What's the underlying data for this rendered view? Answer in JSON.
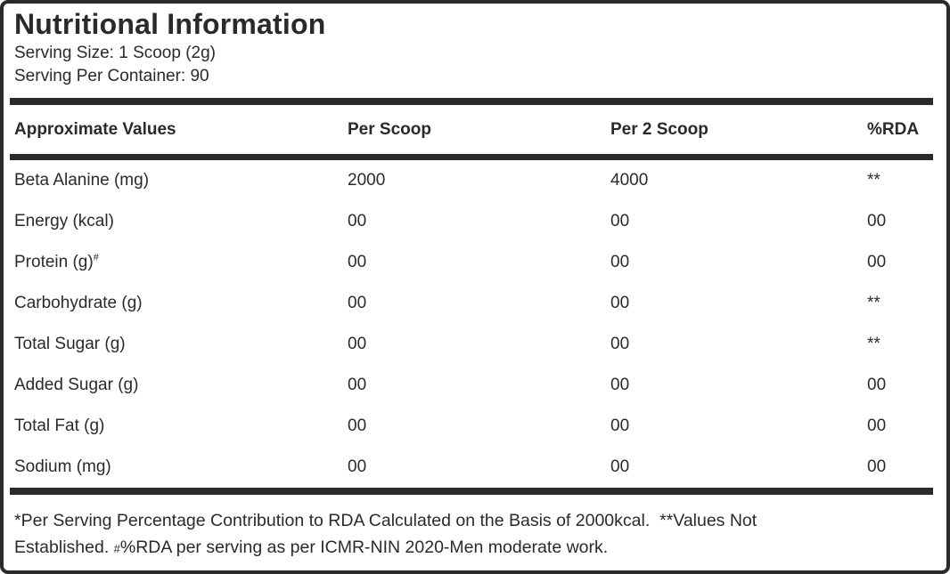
{
  "header": {
    "title": "Nutritional Information",
    "serving_size": "Serving Size: 1 Scoop (2g)",
    "serving_per_container": "Serving Per Container: 90"
  },
  "table": {
    "columns": [
      "Approximate Values",
      "Per Scoop",
      "Per 2 Scoop",
      "%RDA"
    ],
    "rows": [
      {
        "label": "Beta Alanine (mg)",
        "sup": "",
        "per_scoop": "2000",
        "per_2_scoop": "4000",
        "rda": "**"
      },
      {
        "label": "Energy (kcal)",
        "sup": "",
        "per_scoop": "00",
        "per_2_scoop": "00",
        "rda": "00"
      },
      {
        "label": "Protein (g)",
        "sup": "#",
        "per_scoop": "00",
        "per_2_scoop": "00",
        "rda": "00"
      },
      {
        "label": "Carbohydrate (g)",
        "sup": "",
        "per_scoop": "00",
        "per_2_scoop": "00",
        "rda": "**"
      },
      {
        "label": "Total Sugar (g)",
        "sup": "",
        "per_scoop": "00",
        "per_2_scoop": "00",
        "rda": "**"
      },
      {
        "label": "Added Sugar (g)",
        "sup": "",
        "per_scoop": "00",
        "per_2_scoop": "00",
        "rda": "00"
      },
      {
        "label": "Total Fat (g)",
        "sup": "",
        "per_scoop": "00",
        "per_2_scoop": "00",
        "rda": "00"
      },
      {
        "label": "Sodium (mg)",
        "sup": "",
        "per_scoop": "00",
        "per_2_scoop": "00",
        "rda": "00"
      }
    ]
  },
  "footnote": {
    "line1": "*Per Serving Percentage Contribution to RDA Calculated on the Basis of 2000kcal.  **Values Not",
    "line2_prefix": "Established. ",
    "line2_hash": "#",
    "line2_rest": "%RDA per serving as per ICMR-NIN 2020-Men moderate work."
  },
  "colors": {
    "text": "#2b2a29",
    "border": "#2b2a29",
    "background": "#ffffff"
  }
}
